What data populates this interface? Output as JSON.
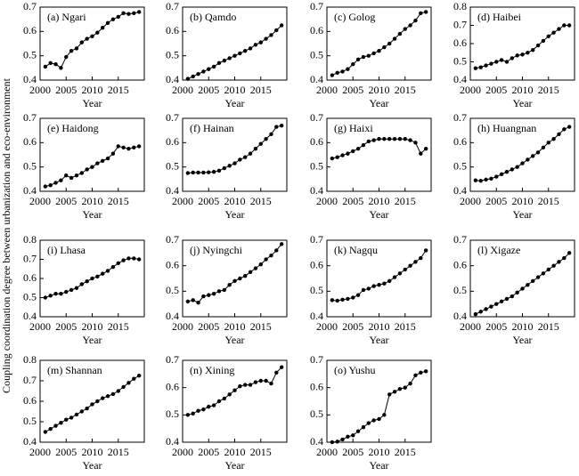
{
  "ylabel": "Coupling coordination degree between urbanization and eco-environment",
  "chart_data": [
    {
      "type": "line",
      "title": "(a) Ngari",
      "xlabel": "Year",
      "color": "#000000",
      "x": [
        2001,
        2002,
        2003,
        2004,
        2005,
        2006,
        2007,
        2008,
        2009,
        2010,
        2011,
        2012,
        2013,
        2014,
        2015,
        2016,
        2017,
        2018,
        2019
      ],
      "values": [
        0.455,
        0.47,
        0.465,
        0.45,
        0.495,
        0.52,
        0.53,
        0.555,
        0.57,
        0.58,
        0.595,
        0.615,
        0.635,
        0.65,
        0.66,
        0.675,
        0.672,
        0.675,
        0.68
      ],
      "xlim": [
        2000,
        2020
      ],
      "xticks": [
        2000,
        2005,
        2010,
        2015
      ],
      "ylim": [
        0.4,
        0.7
      ],
      "yticks": [
        0.4,
        0.5,
        0.6,
        0.7
      ]
    },
    {
      "type": "line",
      "title": "(b) Qamdo",
      "xlabel": "Year",
      "color": "#000000",
      "x": [
        2001,
        2002,
        2003,
        2004,
        2005,
        2006,
        2007,
        2008,
        2009,
        2010,
        2011,
        2012,
        2013,
        2014,
        2015,
        2016,
        2017,
        2018,
        2019
      ],
      "values": [
        0.405,
        0.415,
        0.425,
        0.435,
        0.445,
        0.455,
        0.47,
        0.48,
        0.49,
        0.5,
        0.51,
        0.52,
        0.53,
        0.545,
        0.555,
        0.57,
        0.585,
        0.605,
        0.625
      ],
      "xlim": [
        2000,
        2020
      ],
      "xticks": [
        2000,
        2005,
        2010,
        2015
      ],
      "ylim": [
        0.4,
        0.7
      ],
      "yticks": [
        0.4,
        0.5,
        0.6,
        0.7
      ]
    },
    {
      "type": "line",
      "title": "(c) Golog",
      "xlabel": "Year",
      "color": "#000000",
      "x": [
        2001,
        2002,
        2003,
        2004,
        2005,
        2006,
        2007,
        2008,
        2009,
        2010,
        2011,
        2012,
        2013,
        2014,
        2015,
        2016,
        2017,
        2018,
        2019
      ],
      "values": [
        0.42,
        0.43,
        0.435,
        0.445,
        0.465,
        0.485,
        0.495,
        0.5,
        0.51,
        0.52,
        0.535,
        0.55,
        0.57,
        0.59,
        0.61,
        0.625,
        0.645,
        0.675,
        0.68
      ],
      "xlim": [
        2000,
        2020
      ],
      "xticks": [
        2000,
        2005,
        2010,
        2015
      ],
      "ylim": [
        0.4,
        0.7
      ],
      "yticks": [
        0.4,
        0.5,
        0.6,
        0.7
      ]
    },
    {
      "type": "line",
      "title": "(d) Haibei",
      "xlabel": "Year",
      "color": "#000000",
      "x": [
        2001,
        2002,
        2003,
        2004,
        2005,
        2006,
        2007,
        2008,
        2009,
        2010,
        2011,
        2012,
        2013,
        2014,
        2015,
        2016,
        2017,
        2018,
        2019
      ],
      "values": [
        0.465,
        0.47,
        0.48,
        0.49,
        0.5,
        0.51,
        0.5,
        0.52,
        0.535,
        0.54,
        0.55,
        0.565,
        0.59,
        0.615,
        0.64,
        0.66,
        0.68,
        0.7,
        0.7
      ],
      "xlim": [
        2000,
        2020
      ],
      "xticks": [
        2000,
        2005,
        2010,
        2015
      ],
      "ylim": [
        0.4,
        0.8
      ],
      "yticks": [
        0.4,
        0.5,
        0.6,
        0.7,
        0.8
      ]
    },
    {
      "type": "line",
      "title": "(e) Haidong",
      "xlabel": "Year",
      "color": "#000000",
      "x": [
        2001,
        2002,
        2003,
        2004,
        2005,
        2006,
        2007,
        2008,
        2009,
        2010,
        2011,
        2012,
        2013,
        2014,
        2015,
        2016,
        2017,
        2018,
        2019
      ],
      "values": [
        0.42,
        0.425,
        0.435,
        0.445,
        0.465,
        0.455,
        0.465,
        0.475,
        0.49,
        0.5,
        0.515,
        0.525,
        0.535,
        0.555,
        0.585,
        0.58,
        0.575,
        0.58,
        0.585
      ],
      "xlim": [
        2000,
        2020
      ],
      "xticks": [
        2000,
        2005,
        2010,
        2015
      ],
      "ylim": [
        0.4,
        0.7
      ],
      "yticks": [
        0.4,
        0.5,
        0.6,
        0.7
      ]
    },
    {
      "type": "line",
      "title": "(f) Hainan",
      "xlabel": "Year",
      "color": "#000000",
      "x": [
        2001,
        2002,
        2003,
        2004,
        2005,
        2006,
        2007,
        2008,
        2009,
        2010,
        2011,
        2012,
        2013,
        2014,
        2015,
        2016,
        2017,
        2018,
        2019
      ],
      "values": [
        0.475,
        0.477,
        0.477,
        0.477,
        0.478,
        0.48,
        0.485,
        0.495,
        0.505,
        0.515,
        0.53,
        0.54,
        0.555,
        0.575,
        0.595,
        0.615,
        0.635,
        0.665,
        0.67
      ],
      "xlim": [
        2000,
        2020
      ],
      "xticks": [
        2000,
        2005,
        2010,
        2015
      ],
      "ylim": [
        0.4,
        0.7
      ],
      "yticks": [
        0.4,
        0.5,
        0.6,
        0.7
      ]
    },
    {
      "type": "line",
      "title": "(g) Haixi",
      "xlabel": "Year",
      "color": "#000000",
      "x": [
        2001,
        2002,
        2003,
        2004,
        2005,
        2006,
        2007,
        2008,
        2009,
        2010,
        2011,
        2012,
        2013,
        2014,
        2015,
        2016,
        2017,
        2018,
        2019
      ],
      "values": [
        0.535,
        0.54,
        0.548,
        0.555,
        0.565,
        0.575,
        0.59,
        0.605,
        0.61,
        0.615,
        0.615,
        0.615,
        0.615,
        0.615,
        0.615,
        0.61,
        0.6,
        0.555,
        0.575
      ],
      "xlim": [
        2000,
        2020
      ],
      "xticks": [
        2000,
        2005,
        2010,
        2015
      ],
      "ylim": [
        0.4,
        0.7
      ],
      "yticks": [
        0.4,
        0.5,
        0.6,
        0.7
      ]
    },
    {
      "type": "line",
      "title": "(h) Huangnan",
      "xlabel": "Year",
      "color": "#000000",
      "x": [
        2001,
        2002,
        2003,
        2004,
        2005,
        2006,
        2007,
        2008,
        2009,
        2010,
        2011,
        2012,
        2013,
        2014,
        2015,
        2016,
        2017,
        2018,
        2019
      ],
      "values": [
        0.445,
        0.443,
        0.448,
        0.452,
        0.46,
        0.47,
        0.48,
        0.49,
        0.5,
        0.515,
        0.53,
        0.545,
        0.56,
        0.58,
        0.6,
        0.615,
        0.635,
        0.655,
        0.665
      ],
      "xlim": [
        2000,
        2020
      ],
      "xticks": [
        2000,
        2005,
        2010,
        2015
      ],
      "ylim": [
        0.4,
        0.7
      ],
      "yticks": [
        0.4,
        0.5,
        0.6,
        0.7
      ]
    },
    {
      "type": "line",
      "title": "(i) Lhasa",
      "xlabel": "Year",
      "color": "#000000",
      "x": [
        2001,
        2002,
        2003,
        2004,
        2005,
        2006,
        2007,
        2008,
        2009,
        2010,
        2011,
        2012,
        2013,
        2014,
        2015,
        2016,
        2017,
        2018,
        2019
      ],
      "values": [
        0.5,
        0.51,
        0.52,
        0.52,
        0.53,
        0.54,
        0.55,
        0.57,
        0.585,
        0.6,
        0.61,
        0.625,
        0.64,
        0.66,
        0.68,
        0.695,
        0.705,
        0.705,
        0.7
      ],
      "xlim": [
        2000,
        2020
      ],
      "xticks": [
        2000,
        2005,
        2010,
        2015
      ],
      "ylim": [
        0.4,
        0.8
      ],
      "yticks": [
        0.4,
        0.5,
        0.6,
        0.7,
        0.8
      ]
    },
    {
      "type": "line",
      "title": "(j) Nyingchi",
      "xlabel": "Year",
      "color": "#000000",
      "x": [
        2001,
        2002,
        2003,
        2004,
        2005,
        2006,
        2007,
        2008,
        2009,
        2010,
        2011,
        2012,
        2013,
        2014,
        2015,
        2016,
        2017,
        2018,
        2019
      ],
      "values": [
        0.46,
        0.465,
        0.455,
        0.48,
        0.485,
        0.49,
        0.5,
        0.505,
        0.525,
        0.54,
        0.55,
        0.56,
        0.575,
        0.59,
        0.605,
        0.625,
        0.64,
        0.66,
        0.685
      ],
      "xlim": [
        2000,
        2020
      ],
      "xticks": [
        2000,
        2005,
        2010,
        2015
      ],
      "ylim": [
        0.4,
        0.7
      ],
      "yticks": [
        0.4,
        0.5,
        0.6,
        0.7
      ]
    },
    {
      "type": "line",
      "title": "(k) Nagqu",
      "xlabel": "Year",
      "color": "#000000",
      "x": [
        2001,
        2002,
        2003,
        2004,
        2005,
        2006,
        2007,
        2008,
        2009,
        2010,
        2011,
        2012,
        2013,
        2014,
        2015,
        2016,
        2017,
        2018,
        2019
      ],
      "values": [
        0.465,
        0.463,
        0.467,
        0.47,
        0.475,
        0.485,
        0.505,
        0.51,
        0.52,
        0.525,
        0.53,
        0.54,
        0.555,
        0.57,
        0.585,
        0.6,
        0.615,
        0.63,
        0.66
      ],
      "xlim": [
        2000,
        2020
      ],
      "xticks": [
        2000,
        2005,
        2010,
        2015
      ],
      "ylim": [
        0.4,
        0.7
      ],
      "yticks": [
        0.4,
        0.5,
        0.6,
        0.7
      ]
    },
    {
      "type": "line",
      "title": "(l) Xigaze",
      "xlabel": "Year",
      "color": "#000000",
      "x": [
        2001,
        2002,
        2003,
        2004,
        2005,
        2006,
        2007,
        2008,
        2009,
        2010,
        2011,
        2012,
        2013,
        2014,
        2015,
        2016,
        2017,
        2018,
        2019
      ],
      "values": [
        0.41,
        0.42,
        0.43,
        0.44,
        0.45,
        0.46,
        0.47,
        0.48,
        0.495,
        0.51,
        0.525,
        0.54,
        0.555,
        0.57,
        0.585,
        0.6,
        0.615,
        0.63,
        0.65
      ],
      "xlim": [
        2000,
        2020
      ],
      "xticks": [
        2000,
        2005,
        2010,
        2015
      ],
      "ylim": [
        0.4,
        0.7
      ],
      "yticks": [
        0.4,
        0.5,
        0.6,
        0.7
      ]
    },
    {
      "type": "line",
      "title": "(m) Shannan",
      "xlabel": "Year",
      "color": "#000000",
      "x": [
        2001,
        2002,
        2003,
        2004,
        2005,
        2006,
        2007,
        2008,
        2009,
        2010,
        2011,
        2012,
        2013,
        2014,
        2015,
        2016,
        2017,
        2018,
        2019
      ],
      "values": [
        0.45,
        0.465,
        0.48,
        0.495,
        0.51,
        0.52,
        0.535,
        0.55,
        0.565,
        0.585,
        0.6,
        0.615,
        0.625,
        0.635,
        0.65,
        0.67,
        0.69,
        0.71,
        0.725
      ],
      "xlim": [
        2000,
        2020
      ],
      "xticks": [
        2000,
        2005,
        2010,
        2015
      ],
      "ylim": [
        0.4,
        0.8
      ],
      "yticks": [
        0.4,
        0.5,
        0.6,
        0.7,
        0.8
      ]
    },
    {
      "type": "line",
      "title": "(n) Xining",
      "xlabel": "Year",
      "color": "#000000",
      "x": [
        2001,
        2002,
        2003,
        2004,
        2005,
        2006,
        2007,
        2008,
        2009,
        2010,
        2011,
        2012,
        2013,
        2014,
        2015,
        2016,
        2017,
        2018,
        2019
      ],
      "values": [
        0.5,
        0.505,
        0.515,
        0.52,
        0.53,
        0.535,
        0.55,
        0.56,
        0.575,
        0.59,
        0.605,
        0.61,
        0.61,
        0.62,
        0.625,
        0.625,
        0.615,
        0.655,
        0.675
      ],
      "xlim": [
        2000,
        2020
      ],
      "xticks": [
        2000,
        2005,
        2010,
        2015
      ],
      "ylim": [
        0.4,
        0.7
      ],
      "yticks": [
        0.4,
        0.5,
        0.6,
        0.7
      ]
    },
    {
      "type": "line",
      "title": "(o) Yushu",
      "xlabel": "Year",
      "color": "#000000",
      "x": [
        2001,
        2002,
        2003,
        2004,
        2005,
        2006,
        2007,
        2008,
        2009,
        2010,
        2011,
        2012,
        2013,
        2014,
        2015,
        2016,
        2017,
        2018,
        2019
      ],
      "values": [
        0.4,
        0.402,
        0.41,
        0.42,
        0.425,
        0.44,
        0.455,
        0.47,
        0.48,
        0.485,
        0.5,
        0.575,
        0.585,
        0.595,
        0.6,
        0.615,
        0.645,
        0.655,
        0.66
      ],
      "xlim": [
        2000,
        2020
      ],
      "xticks": [
        2000,
        2005,
        2010,
        2015
      ],
      "ylim": [
        0.4,
        0.7
      ],
      "yticks": [
        0.4,
        0.5,
        0.6,
        0.7
      ]
    }
  ]
}
